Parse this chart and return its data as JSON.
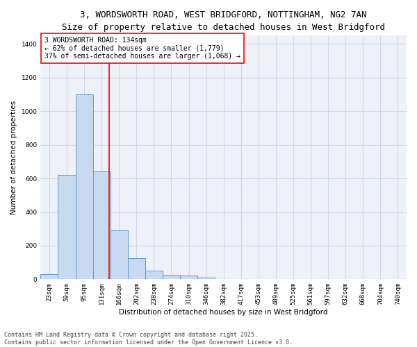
{
  "title_line1": "3, WORDSWORTH ROAD, WEST BRIDGFORD, NOTTINGHAM, NG2 7AN",
  "title_line2": "Size of property relative to detached houses in West Bridgford",
  "xlabel": "Distribution of detached houses by size in West Bridgford",
  "ylabel": "Number of detached properties",
  "categories": [
    "23sqm",
    "59sqm",
    "95sqm",
    "131sqm",
    "166sqm",
    "202sqm",
    "238sqm",
    "274sqm",
    "310sqm",
    "346sqm",
    "382sqm",
    "417sqm",
    "453sqm",
    "489sqm",
    "525sqm",
    "561sqm",
    "597sqm",
    "632sqm",
    "668sqm",
    "704sqm",
    "740sqm"
  ],
  "values": [
    30,
    620,
    1100,
    640,
    290,
    125,
    50,
    25,
    20,
    10,
    0,
    0,
    0,
    0,
    0,
    0,
    0,
    0,
    0,
    0,
    0
  ],
  "bar_color": "#c9d9f0",
  "bar_edge_color": "#5b9bd5",
  "vline_x": 3.45,
  "vline_color": "red",
  "annotation_text": "3 WORDSWORTH ROAD: 134sqm\n← 62% of detached houses are smaller (1,779)\n37% of semi-detached houses are larger (1,068) →",
  "annotation_box_color": "white",
  "annotation_box_edge_color": "red",
  "ylim": [
    0,
    1450
  ],
  "yticks": [
    0,
    200,
    400,
    600,
    800,
    1000,
    1200,
    1400
  ],
  "grid_color": "#d0d8e8",
  "bg_color": "#eef2f8",
  "footer_line1": "Contains HM Land Registry data © Crown copyright and database right 2025.",
  "footer_line2": "Contains public sector information licensed under the Open Government Licence v3.0.",
  "title_fontsize": 9,
  "subtitle_fontsize": 8,
  "axis_label_fontsize": 7.5,
  "tick_fontsize": 6.5,
  "annotation_fontsize": 7,
  "footer_fontsize": 6
}
